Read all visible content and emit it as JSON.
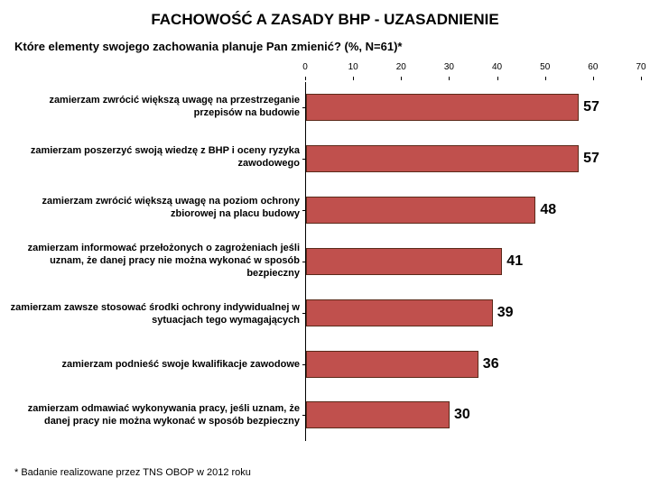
{
  "title": "FACHOWOŚĆ A ZASADY BHP - UZASADNIENIE",
  "subtitle": "Które elementy swojego zachowania planuje Pan zmienić? (%, N=61)*",
  "footnote": "* Badanie realizowane przez TNS OBOP w 2012 roku",
  "chart": {
    "type": "bar-horizontal",
    "xlim": [
      0,
      70
    ],
    "xtick_step": 10,
    "ticks": [
      0,
      10,
      20,
      30,
      40,
      50,
      60,
      70
    ],
    "bar_color": "#c0504d",
    "bar_border_color": "#5b2a1a",
    "axis_color": "#000000",
    "value_fontsize": 16,
    "label_fontsize": 11,
    "tick_fontsize": 10,
    "categories": [
      "zamierzam zwrócić większą uwagę na przestrzeganie przepisów na budowie",
      "zamierzam poszerzyć swoją wiedzę z BHP i oceny ryzyka zawodowego",
      "zamierzam zwrócić większą uwagę na poziom ochrony zbiorowej na placu budowy",
      "zamierzam informować przełożonych o zagrożeniach jeśli uznam, że danej pracy nie można wykonać w sposób bezpieczny",
      "zamierzam zawsze stosować środki ochrony indywidualnej w sytuacjach tego wymagających",
      "zamierzam podnieść swoje kwalifikacje zawodowe",
      "zamierzam odmawiać wykonywania pracy, jeśli uznam, że danej pracy nie można wykonać w sposób bezpieczny"
    ],
    "values": [
      57,
      57,
      48,
      41,
      39,
      36,
      30
    ]
  }
}
